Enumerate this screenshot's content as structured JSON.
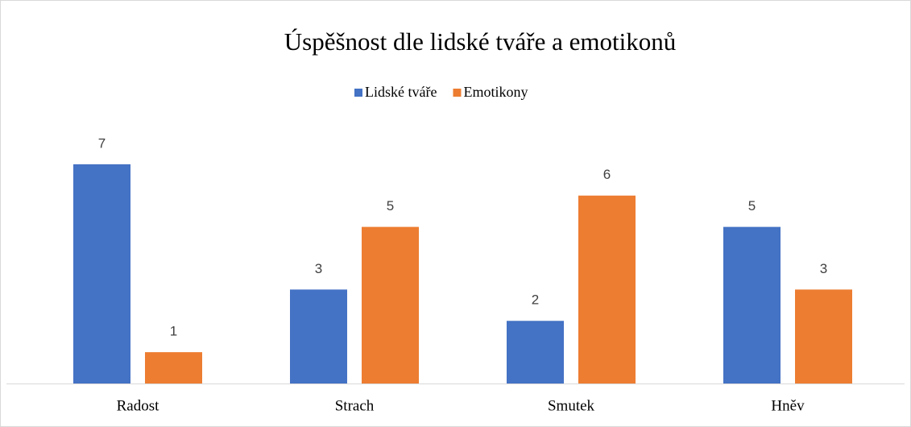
{
  "chart_data": {
    "type": "bar",
    "title": "Úspěšnost dle lidské tváře a emotikonů",
    "categories": [
      "Radost",
      "Strach",
      "Smutek",
      "Hněv"
    ],
    "series": [
      {
        "name": "Lidské tváře",
        "color": "#4472c4",
        "values": [
          7,
          3,
          2,
          5
        ]
      },
      {
        "name": "Emotikony",
        "color": "#ed7d31",
        "values": [
          1,
          5,
          6,
          3
        ]
      }
    ],
    "ylim": [
      0,
      8
    ],
    "legend": "top"
  }
}
